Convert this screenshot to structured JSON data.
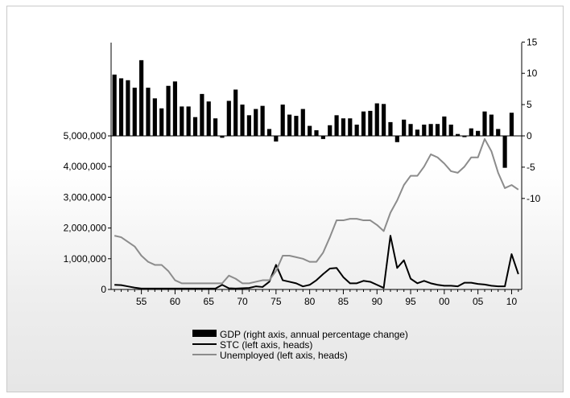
{
  "chart_data": {
    "type": "bar+line",
    "title": "",
    "x": {
      "start_year": 1951,
      "end_year": 2011,
      "tick_labels": [
        "55",
        "60",
        "65",
        "70",
        "75",
        "80",
        "85",
        "90",
        "95",
        "00",
        "05",
        "10"
      ],
      "tick_years": [
        1955,
        1960,
        1965,
        1970,
        1975,
        1980,
        1985,
        1990,
        1995,
        2000,
        2005,
        2010
      ]
    },
    "left_axis": {
      "ylim": [
        0,
        5000000
      ],
      "ticks": [
        0,
        1000000,
        2000000,
        3000000,
        4000000,
        5000000
      ],
      "tick_labels": [
        "0",
        "1,000,000",
        "2,000,000",
        "3,000,000",
        "4,000,000",
        "5,000,000"
      ]
    },
    "right_axis": {
      "ticks": [
        -10,
        -5,
        0,
        5,
        10,
        15
      ],
      "tick_labels": [
        "-10",
        "-5",
        "0",
        "5",
        "10",
        "15"
      ]
    },
    "series": [
      {
        "name": "GDP (right axis, annual percentage change)",
        "kind": "bar",
        "axis": "right",
        "color": "#000000",
        "x": [
          1951,
          1952,
          1953,
          1954,
          1955,
          1956,
          1957,
          1958,
          1959,
          1960,
          1961,
          1962,
          1963,
          1964,
          1965,
          1966,
          1967,
          1968,
          1969,
          1970,
          1971,
          1972,
          1973,
          1974,
          1975,
          1976,
          1977,
          1978,
          1979,
          1980,
          1981,
          1982,
          1983,
          1984,
          1985,
          1986,
          1987,
          1988,
          1989,
          1990,
          1991,
          1992,
          1993,
          1994,
          1995,
          1996,
          1997,
          1998,
          1999,
          2000,
          2001,
          2002,
          2003,
          2004,
          2005,
          2006,
          2007,
          2008,
          2009,
          2010,
          2011
        ],
        "values": [
          9.8,
          9.2,
          8.9,
          7.7,
          12.1,
          7.7,
          6.0,
          4.4,
          8.0,
          8.7,
          4.7,
          4.7,
          3.0,
          6.7,
          5.5,
          2.8,
          -0.3,
          5.6,
          7.4,
          5.0,
          3.3,
          4.3,
          4.8,
          1.1,
          -0.9,
          5.0,
          3.4,
          3.2,
          4.3,
          1.6,
          0.9,
          -0.5,
          1.7,
          3.3,
          2.8,
          2.8,
          1.8,
          3.9,
          4.0,
          5.2,
          5.1,
          2.2,
          -1.0,
          2.6,
          1.9,
          1.0,
          1.8,
          1.9,
          1.9,
          3.1,
          1.8,
          0.3,
          -0.2,
          1.2,
          0.8,
          3.9,
          3.4,
          1.1,
          -5.1,
          3.7,
          0.0
        ]
      },
      {
        "name": "STC (left axis, heads)",
        "kind": "line",
        "axis": "left",
        "color": "#000000",
        "x": [
          1951,
          1952,
          1953,
          1954,
          1955,
          1956,
          1957,
          1958,
          1959,
          1960,
          1961,
          1962,
          1963,
          1964,
          1965,
          1966,
          1967,
          1968,
          1969,
          1970,
          1971,
          1972,
          1973,
          1974,
          1975,
          1976,
          1977,
          1978,
          1979,
          1980,
          1981,
          1982,
          1983,
          1984,
          1985,
          1986,
          1987,
          1988,
          1989,
          1990,
          1991,
          1992,
          1993,
          1994,
          1995,
          1996,
          1997,
          1998,
          1999,
          2000,
          2001,
          2002,
          2003,
          2004,
          2005,
          2006,
          2007,
          2008,
          2009,
          2010,
          2011
        ],
        "values": [
          150000,
          140000,
          100000,
          60000,
          30000,
          30000,
          30000,
          30000,
          30000,
          30000,
          30000,
          30000,
          30000,
          30000,
          30000,
          30000,
          150000,
          40000,
          30000,
          40000,
          50000,
          100000,
          80000,
          250000,
          800000,
          300000,
          250000,
          200000,
          100000,
          150000,
          300000,
          500000,
          680000,
          700000,
          400000,
          200000,
          200000,
          280000,
          250000,
          150000,
          50000,
          1750000,
          700000,
          950000,
          350000,
          200000,
          280000,
          200000,
          150000,
          120000,
          120000,
          100000,
          220000,
          220000,
          180000,
          160000,
          120000,
          100000,
          100000,
          1150000,
          500000
        ]
      },
      {
        "name": "Unemployed (left axis, heads)",
        "kind": "line",
        "axis": "left",
        "color": "#8c8c8c",
        "x": [
          1951,
          1952,
          1953,
          1954,
          1955,
          1956,
          1957,
          1958,
          1959,
          1960,
          1961,
          1962,
          1963,
          1964,
          1965,
          1966,
          1967,
          1968,
          1969,
          1970,
          1971,
          1972,
          1973,
          1974,
          1975,
          1976,
          1977,
          1978,
          1979,
          1980,
          1981,
          1982,
          1983,
          1984,
          1985,
          1986,
          1987,
          1988,
          1989,
          1990,
          1991,
          1992,
          1993,
          1994,
          1995,
          1996,
          1997,
          1998,
          1999,
          2000,
          2001,
          2002,
          2003,
          2004,
          2005,
          2006,
          2007,
          2008,
          2009,
          2010,
          2011
        ],
        "values": [
          1750000,
          1700000,
          1550000,
          1400000,
          1100000,
          900000,
          800000,
          800000,
          600000,
          300000,
          200000,
          200000,
          200000,
          200000,
          200000,
          200000,
          200000,
          450000,
          350000,
          200000,
          200000,
          250000,
          300000,
          300000,
          600000,
          1100000,
          1100000,
          1050000,
          1000000,
          900000,
          900000,
          1200000,
          1700000,
          2250000,
          2250000,
          2300000,
          2300000,
          2250000,
          2250000,
          2100000,
          1900000,
          2500000,
          2900000,
          3400000,
          3700000,
          3700000,
          4000000,
          4400000,
          4300000,
          4100000,
          3850000,
          3800000,
          4000000,
          4300000,
          4300000,
          4900000,
          4500000,
          3800000,
          3300000,
          3400000,
          3250000
        ]
      }
    ],
    "legend": {
      "placement": "bottom-center",
      "items": [
        {
          "label": "GDP (right axis, annual percentage change)",
          "swatch": "bar",
          "color": "#000000"
        },
        {
          "label": "STC (left axis, heads)",
          "swatch": "line",
          "color": "#000000"
        },
        {
          "label": "Unemployed (left axis, heads)",
          "swatch": "line",
          "color": "#8c8c8c"
        }
      ]
    },
    "grid": false
  }
}
